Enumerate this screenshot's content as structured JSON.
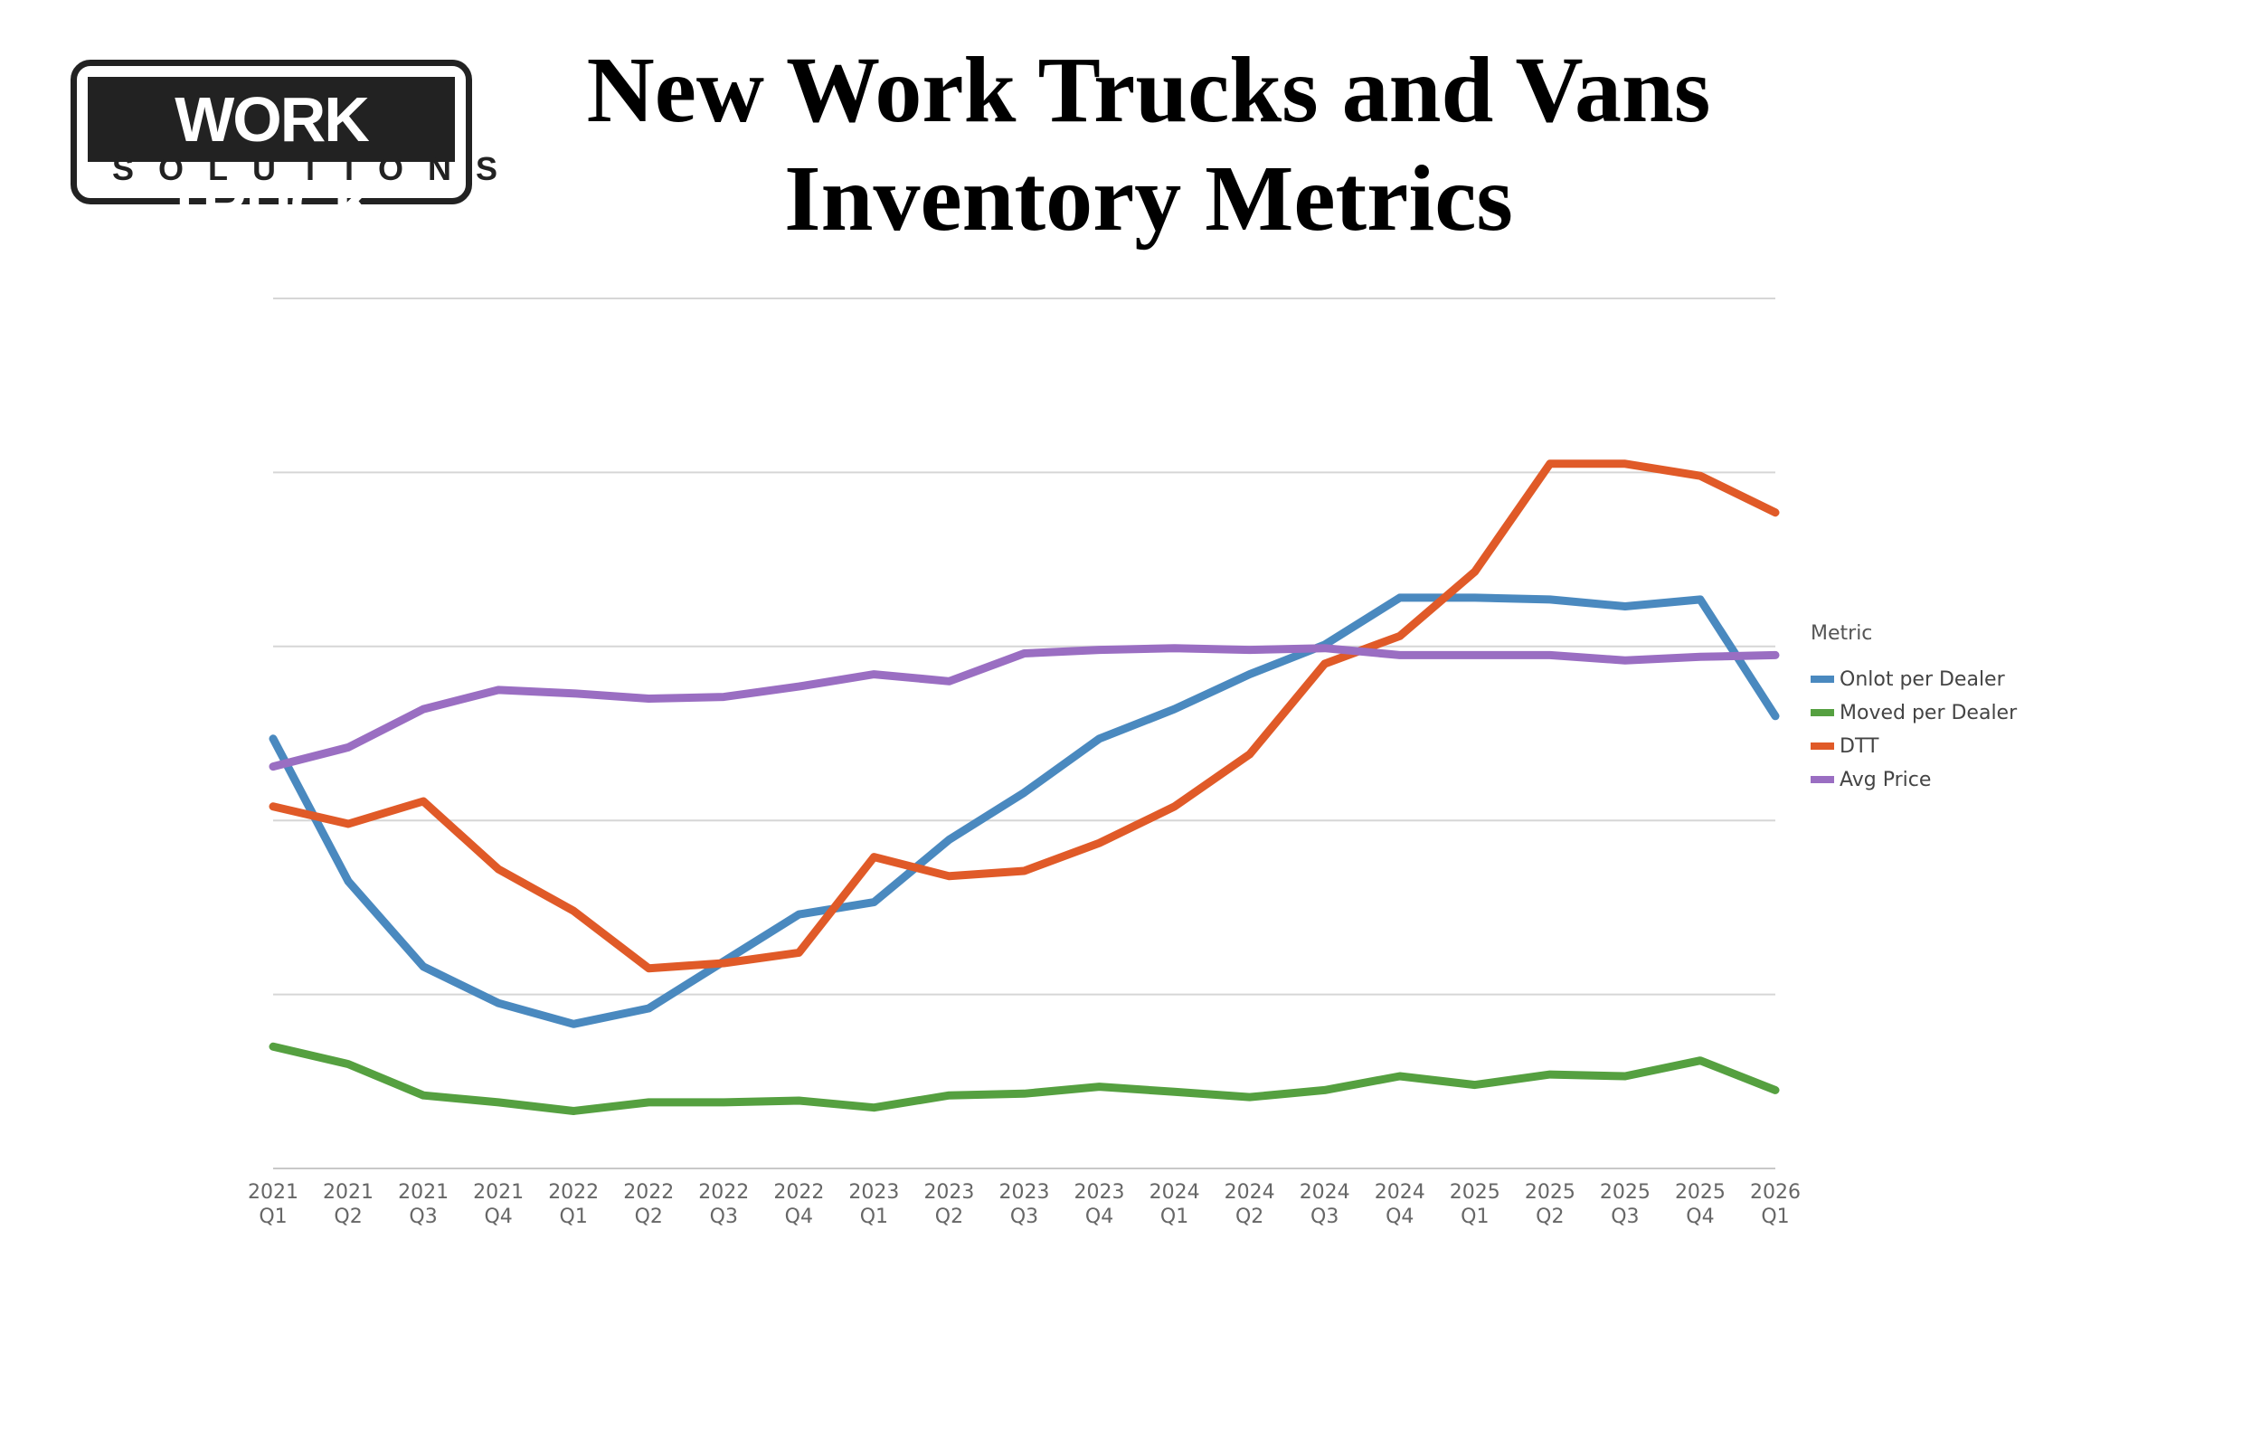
{
  "logo": {
    "top": "WORK TRUCK",
    "bottom": "SOLUTIONS"
  },
  "title_line1": "New Work Trucks and Vans",
  "title_line2": "Inventory Metrics",
  "chart_data": {
    "type": "line",
    "title": "New Work Trucks and Vans Inventory Metrics",
    "xlabel": "",
    "ylabel": "",
    "categories": [
      [
        "2021",
        "Q1"
      ],
      [
        "2021",
        "Q2"
      ],
      [
        "2021",
        "Q3"
      ],
      [
        "2021",
        "Q4"
      ],
      [
        "2022",
        "Q1"
      ],
      [
        "2022",
        "Q2"
      ],
      [
        "2022",
        "Q3"
      ],
      [
        "2022",
        "Q4"
      ],
      [
        "2023",
        "Q1"
      ],
      [
        "2023",
        "Q2"
      ],
      [
        "2023",
        "Q3"
      ],
      [
        "2023",
        "Q4"
      ],
      [
        "2024",
        "Q1"
      ],
      [
        "2024",
        "Q2"
      ],
      [
        "2024",
        "Q3"
      ],
      [
        "2024",
        "Q4"
      ],
      [
        "2025",
        "Q1"
      ],
      [
        "2025",
        "Q2"
      ],
      [
        "2025",
        "Q3"
      ],
      [
        "2025",
        "Q4"
      ],
      [
        "2026",
        "Q1"
      ]
    ],
    "ylim": [
      0,
      5
    ],
    "gridlines": 6,
    "y_tick_labels_visible": false,
    "legend_title": "Metric",
    "legend_position": "right",
    "series": [
      {
        "name": "Onlot per Dealer",
        "color": "#4a89bf",
        "values": [
          2.47,
          1.65,
          1.16,
          0.95,
          0.83,
          0.92,
          1.19,
          1.46,
          1.53,
          1.89,
          2.16,
          2.47,
          2.64,
          2.84,
          3.01,
          3.28,
          3.28,
          3.27,
          3.23,
          3.27,
          2.6
        ]
      },
      {
        "name": "Moved per Dealer",
        "color": "#55a040",
        "values": [
          0.7,
          0.6,
          0.42,
          0.38,
          0.33,
          0.38,
          0.38,
          0.39,
          0.35,
          0.42,
          0.43,
          0.47,
          0.44,
          0.41,
          0.45,
          0.53,
          0.48,
          0.54,
          0.53,
          0.62,
          0.45
        ]
      },
      {
        "name": "DTT",
        "color": "#e05a28",
        "values": [
          2.08,
          1.98,
          2.11,
          1.72,
          1.48,
          1.15,
          1.18,
          1.24,
          1.79,
          1.68,
          1.71,
          1.87,
          2.08,
          2.38,
          2.9,
          3.06,
          3.43,
          4.05,
          4.05,
          3.98,
          3.77
        ]
      },
      {
        "name": "Avg Price",
        "color": "#9a6ec2",
        "values": [
          2.31,
          2.42,
          2.64,
          2.75,
          2.73,
          2.7,
          2.71,
          2.77,
          2.84,
          2.8,
          2.96,
          2.98,
          2.99,
          2.98,
          2.99,
          2.95,
          2.95,
          2.95,
          2.92,
          2.94,
          2.95
        ]
      }
    ]
  }
}
